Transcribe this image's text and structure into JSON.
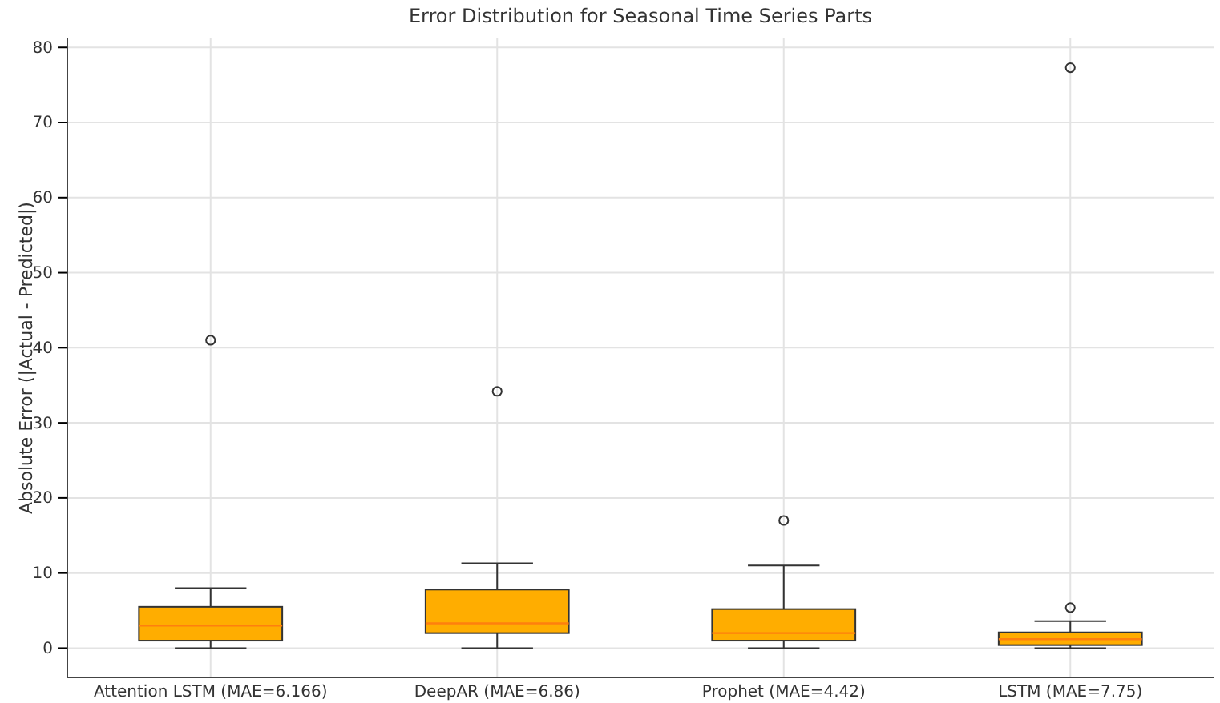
{
  "chart_data": {
    "type": "box",
    "title": "Error Distribution for Seasonal Time Series Parts",
    "ylabel": "Absolute Error (|Actual - Predicted|)",
    "categories": [
      "Attention LSTM (MAE=6.166)",
      "DeepAR (MAE=6.86)",
      "Prophet (MAE=4.42)",
      "LSTM (MAE=7.75)"
    ],
    "color": "#ffad00",
    "boxes": [
      {
        "low": 0,
        "q1": 1,
        "median": 3,
        "q3": 5.5,
        "high": 8,
        "outliers": [
          41
        ]
      },
      {
        "low": 0,
        "q1": 2,
        "median": 3.3,
        "q3": 7.8,
        "high": 11.3,
        "outliers": [
          34.2
        ]
      },
      {
        "low": 0,
        "q1": 1,
        "median": 2,
        "q3": 5.2,
        "high": 11,
        "outliers": [
          17
        ]
      },
      {
        "low": 0,
        "q1": 0.4,
        "median": 1.2,
        "q3": 2.1,
        "high": 3.6,
        "outliers": [
          5.4,
          77.3
        ]
      }
    ],
    "ylim": [
      -3.9,
      81.2
    ],
    "yticks": [
      0,
      10,
      20,
      30,
      40,
      50,
      60,
      70,
      80
    ],
    "grid": true
  }
}
